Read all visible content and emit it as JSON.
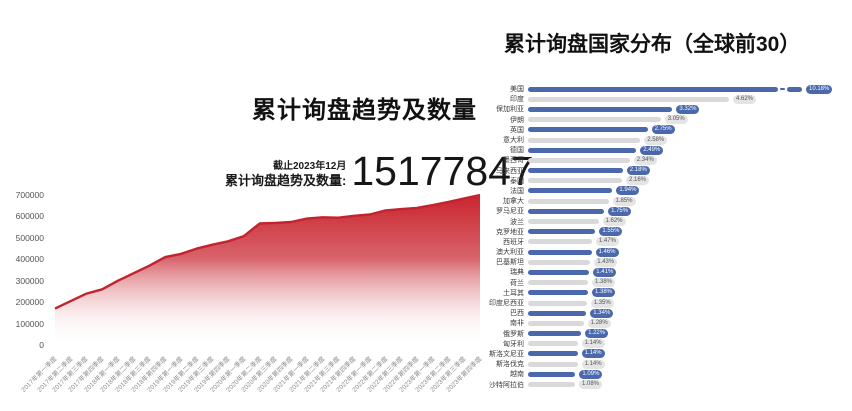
{
  "chart_data": [
    {
      "type": "area",
      "title": "累计询盘趋势及数量",
      "annotation": {
        "as_of": "截止2023年12月",
        "stat_label": "累计询盘趋势及数量:",
        "stat_value": "15177847"
      },
      "x": [
        "2017年第一季度",
        "2017年第二季度",
        "2017年第三季度",
        "2017年第四季度",
        "2018年第一季度",
        "2018年第二季度",
        "2018年第三季度",
        "2018年第四季度",
        "2019年第一季度",
        "2019年第二季度",
        "2019年第三季度",
        "2019年第四季度",
        "2020年第一季度",
        "2020年第二季度",
        "2020年第三季度",
        "2020年第四季度",
        "2021年第一季度",
        "2021年第二季度",
        "2021年第三季度",
        "2021年第四季度",
        "2022年第一季度",
        "2022年第二季度",
        "2022年第三季度",
        "2022年第四季度",
        "2023年第一季度",
        "2023年第二季度",
        "2023年第三季度",
        "2023年第四季度"
      ],
      "values": [
        170000,
        205000,
        240000,
        260000,
        300000,
        335000,
        370000,
        410000,
        425000,
        450000,
        468000,
        484000,
        508000,
        567000,
        570000,
        574000,
        590000,
        596000,
        594000,
        603000,
        609000,
        628000,
        634000,
        640000,
        653000,
        668000,
        684000,
        700000
      ],
      "ylim": [
        0,
        700000
      ],
      "yticks": [
        0,
        100000,
        200000,
        300000,
        400000,
        500000,
        600000,
        700000
      ],
      "grid": false,
      "color": "#c9252f",
      "line_color": "#c2232e"
    },
    {
      "type": "bar",
      "orientation": "horizontal",
      "title": "累计询盘国家分布（全球前30）",
      "categories": [
        "美国",
        "印度",
        "保加利亚",
        "伊朗",
        "英国",
        "意大利",
        "德国",
        "墨西哥",
        "马来西亚",
        "泰国",
        "法国",
        "加拿大",
        "罗马尼亚",
        "波兰",
        "克罗地亚",
        "西班牙",
        "澳大利亚",
        "巴基斯坦",
        "瑞典",
        "荷兰",
        "土耳其",
        "印度尼西亚",
        "巴西",
        "南非",
        "俄罗斯",
        "匈牙利",
        "斯洛文尼亚",
        "斯洛伐克",
        "越南",
        "沙特阿拉伯"
      ],
      "values": [
        10.18,
        4.62,
        3.32,
        3.05,
        2.75,
        2.58,
        2.49,
        2.34,
        2.18,
        2.16,
        1.94,
        1.85,
        1.75,
        1.62,
        1.55,
        1.47,
        1.46,
        1.43,
        1.41,
        1.38,
        1.38,
        1.35,
        1.34,
        1.28,
        1.22,
        1.14,
        1.14,
        1.14,
        1.09,
        1.08
      ],
      "unit": "%",
      "first_bar_truncated": true,
      "legend": false,
      "colors": {
        "odd_rows": "#4a68ab",
        "even_rows": "#d9d9d9",
        "badge_blue": "#4a68ab",
        "badge_gray": "#e4e4e4"
      }
    }
  ]
}
